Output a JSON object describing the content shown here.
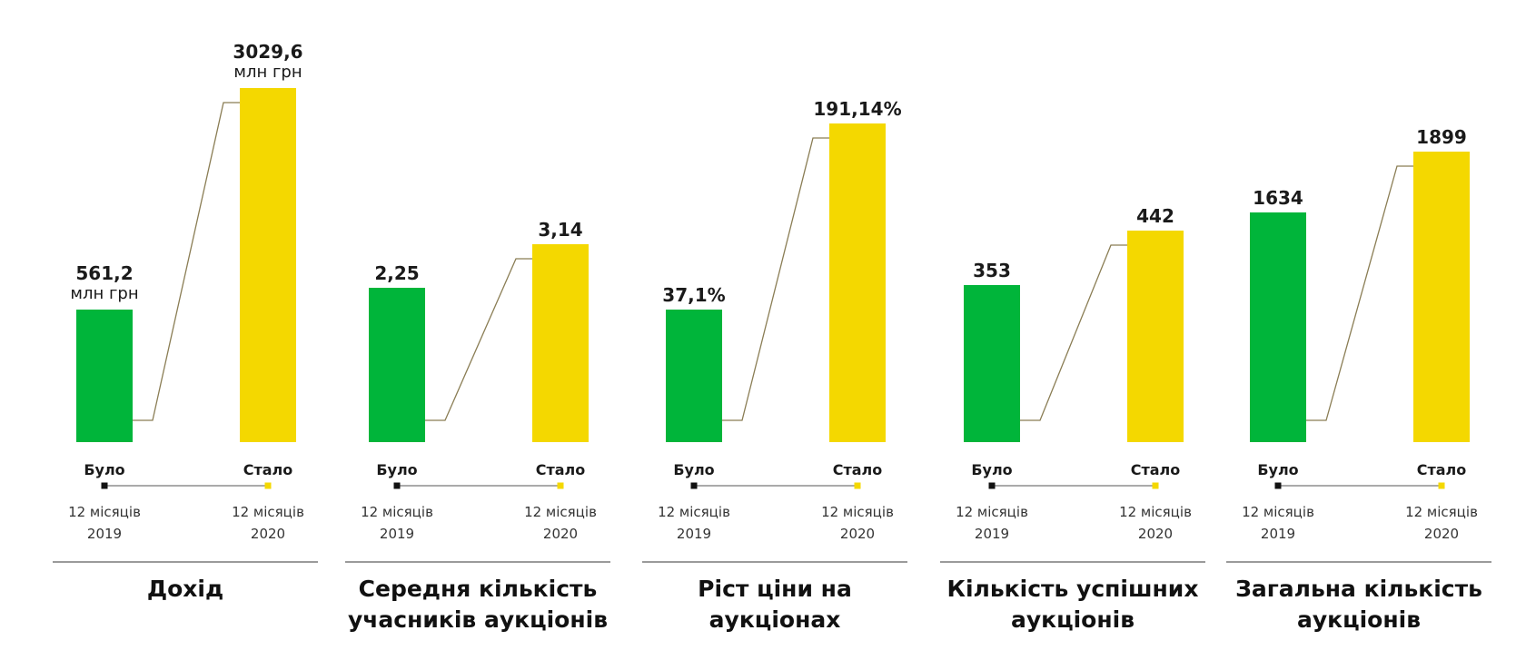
{
  "colors": {
    "before": "#00b53a",
    "after": "#f4d800",
    "connector": "#8a7d54"
  },
  "labels": {
    "before": "Було",
    "after": "Стало",
    "before_period": "12 місяців",
    "after_period": "12 місяців",
    "before_year": "2019",
    "after_year": "2020"
  },
  "chart_data": [
    {
      "type": "bar",
      "title": "Дохід",
      "categories": [
        "Було",
        "Стало"
      ],
      "values": [
        561.2,
        3029.6
      ],
      "value_labels": [
        "561,2",
        "3029,6"
      ],
      "unit": "млн грн"
    },
    {
      "type": "bar",
      "title": "Середня кількість учасників аукціонів",
      "categories": [
        "Було",
        "Стало"
      ],
      "values": [
        2.25,
        3.14
      ],
      "value_labels": [
        "2,25",
        "3,14"
      ],
      "unit": ""
    },
    {
      "type": "bar",
      "title": "Ріст ціни на аукціонах",
      "categories": [
        "Було",
        "Стало"
      ],
      "values": [
        37.1,
        191.14
      ],
      "value_labels": [
        "37,1%",
        "191,14%"
      ],
      "unit": ""
    },
    {
      "type": "bar",
      "title": "Кількість успішних аукціонів",
      "categories": [
        "Було",
        "Стало"
      ],
      "values": [
        353,
        442
      ],
      "value_labels": [
        "353",
        "442"
      ],
      "unit": ""
    },
    {
      "type": "bar",
      "title": "Загальна кількість аукціонів",
      "categories": [
        "Було",
        "Стало"
      ],
      "values": [
        1634,
        1899
      ],
      "value_labels": [
        "1634",
        "1899"
      ],
      "unit": ""
    }
  ]
}
